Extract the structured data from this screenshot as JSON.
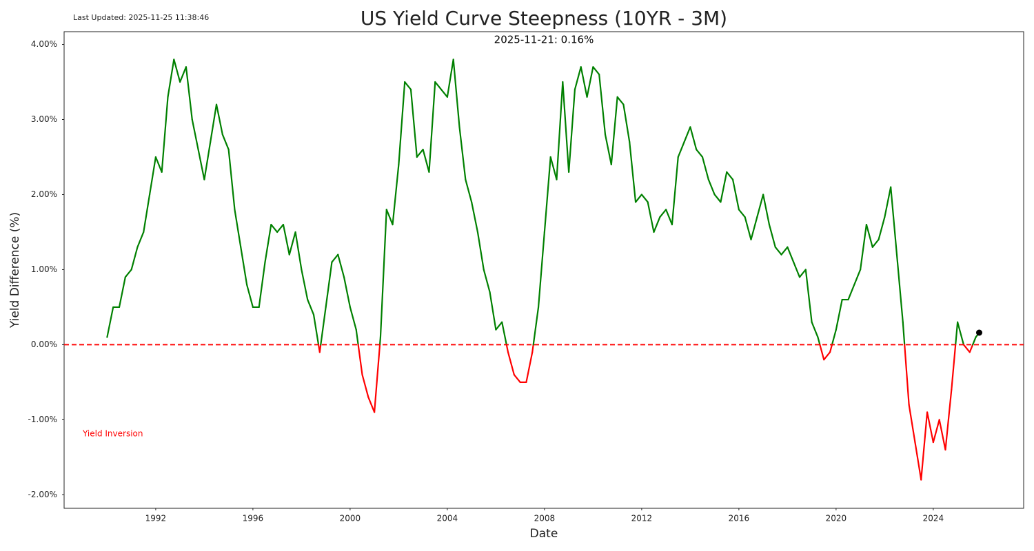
{
  "chart_data": {
    "type": "line",
    "title": "US Yield Curve Steepness (10YR - 3M)",
    "subtitle": "2025-11-21: 0.16%",
    "updated": "Last Updated: 2025-11-25 11:38:46",
    "annotation": "Yield Inversion",
    "xlabel": "Date",
    "ylabel": "Yield Difference (%)",
    "x": [
      1990.0,
      1990.25,
      1990.5,
      1990.75,
      1991.0,
      1991.25,
      1991.5,
      1991.75,
      1992.0,
      1992.25,
      1992.5,
      1992.75,
      1993.0,
      1993.25,
      1993.5,
      1993.75,
      1994.0,
      1994.25,
      1994.5,
      1994.75,
      1995.0,
      1995.25,
      1995.5,
      1995.75,
      1996.0,
      1996.25,
      1996.5,
      1996.75,
      1997.0,
      1997.25,
      1997.5,
      1997.75,
      1998.0,
      1998.25,
      1998.5,
      1998.75,
      1999.0,
      1999.25,
      1999.5,
      1999.75,
      2000.0,
      2000.25,
      2000.5,
      2000.75,
      2001.0,
      2001.25,
      2001.5,
      2001.75,
      2002.0,
      2002.25,
      2002.5,
      2002.75,
      2003.0,
      2003.25,
      2003.5,
      2003.75,
      2004.0,
      2004.25,
      2004.5,
      2004.75,
      2005.0,
      2005.25,
      2005.5,
      2005.75,
      2006.0,
      2006.25,
      2006.5,
      2006.75,
      2007.0,
      2007.25,
      2007.5,
      2007.75,
      2008.0,
      2008.25,
      2008.5,
      2008.75,
      2009.0,
      2009.25,
      2009.5,
      2009.75,
      2010.0,
      2010.25,
      2010.5,
      2010.75,
      2011.0,
      2011.25,
      2011.5,
      2011.75,
      2012.0,
      2012.25,
      2012.5,
      2012.75,
      2013.0,
      2013.25,
      2013.5,
      2013.75,
      2014.0,
      2014.25,
      2014.5,
      2014.75,
      2015.0,
      2015.25,
      2015.5,
      2015.75,
      2016.0,
      2016.25,
      2016.5,
      2016.75,
      2017.0,
      2017.25,
      2017.5,
      2017.75,
      2018.0,
      2018.25,
      2018.5,
      2018.75,
      2019.0,
      2019.25,
      2019.5,
      2019.75,
      2020.0,
      2020.25,
      2020.5,
      2020.75,
      2021.0,
      2021.25,
      2021.5,
      2021.75,
      2022.0,
      2022.25,
      2022.5,
      2022.75,
      2023.0,
      2023.25,
      2023.5,
      2023.75,
      2024.0,
      2024.25,
      2024.5,
      2024.75,
      2025.0,
      2025.25,
      2025.5,
      2025.75,
      2025.89
    ],
    "values": [
      0.1,
      0.5,
      0.5,
      0.9,
      1.0,
      1.3,
      1.5,
      2.0,
      2.5,
      2.3,
      3.3,
      3.8,
      3.5,
      3.7,
      3.0,
      2.6,
      2.2,
      2.7,
      3.2,
      2.8,
      2.6,
      1.8,
      1.3,
      0.8,
      0.5,
      0.5,
      1.1,
      1.6,
      1.5,
      1.6,
      1.2,
      1.5,
      1.0,
      0.6,
      0.4,
      -0.1,
      0.5,
      1.1,
      1.2,
      0.9,
      0.5,
      0.2,
      -0.4,
      -0.7,
      -0.9,
      0.1,
      1.8,
      1.6,
      2.4,
      3.5,
      3.4,
      2.5,
      2.6,
      2.3,
      3.5,
      3.4,
      3.3,
      3.8,
      2.9,
      2.2,
      1.9,
      1.5,
      1.0,
      0.7,
      0.2,
      0.3,
      -0.1,
      -0.4,
      -0.5,
      -0.5,
      -0.1,
      0.5,
      1.5,
      2.5,
      2.2,
      3.5,
      2.3,
      3.4,
      3.7,
      3.3,
      3.7,
      3.6,
      2.8,
      2.4,
      3.3,
      3.2,
      2.7,
      1.9,
      2.0,
      1.9,
      1.5,
      1.7,
      1.8,
      1.6,
      2.5,
      2.7,
      2.9,
      2.6,
      2.5,
      2.2,
      2.0,
      1.9,
      2.3,
      2.2,
      1.8,
      1.7,
      1.4,
      1.7,
      2.0,
      1.6,
      1.3,
      1.2,
      1.3,
      1.1,
      0.9,
      1.0,
      0.3,
      0.1,
      -0.2,
      -0.1,
      0.2,
      0.6,
      0.6,
      0.8,
      1.0,
      1.6,
      1.3,
      1.4,
      1.7,
      2.1,
      1.2,
      0.3,
      -0.8,
      -1.3,
      -1.8,
      -0.9,
      -1.3,
      -1.0,
      -1.4,
      -0.6,
      0.3,
      0.0,
      -0.1,
      0.1,
      0.16
    ],
    "above_color": "green",
    "below_color": "red",
    "threshold": 0,
    "threshold_color": "red",
    "marker_color": "black",
    "xlim": [
      1988.23,
      2027.72
    ],
    "ylim": [
      -2.18,
      4.17
    ],
    "xticks": [
      1992,
      1996,
      2000,
      2004,
      2008,
      2012,
      2016,
      2020,
      2024
    ],
    "yticks": [
      {
        "value": -2,
        "label": "-2.00%"
      },
      {
        "value": -1,
        "label": "-1.00%"
      },
      {
        "value": 0,
        "label": "0.00%"
      },
      {
        "value": 1,
        "label": "1.00%"
      },
      {
        "value": 2,
        "label": "2.00%"
      },
      {
        "value": 3,
        "label": "3.00%"
      },
      {
        "value": 4,
        "label": "4.00%"
      }
    ],
    "grid": false
  }
}
